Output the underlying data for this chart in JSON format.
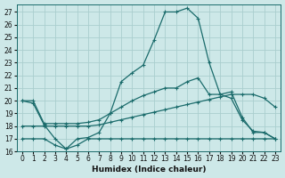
{
  "xlabel": "Humidex (Indice chaleur)",
  "xlim": [
    -0.5,
    23.5
  ],
  "ylim": [
    16,
    27.6
  ],
  "yticks": [
    16,
    17,
    18,
    19,
    20,
    21,
    22,
    23,
    24,
    25,
    26,
    27
  ],
  "xticks": [
    0,
    1,
    2,
    3,
    4,
    5,
    6,
    7,
    8,
    9,
    10,
    11,
    12,
    13,
    14,
    15,
    16,
    17,
    18,
    19,
    20,
    21,
    22,
    23
  ],
  "background_color": "#cde8e8",
  "grid_color": "#aacece",
  "line_color": "#1a6b6b",
  "line1_y": [
    20.0,
    19.8,
    18.1,
    17.0,
    16.2,
    17.0,
    17.1,
    17.5,
    19.0,
    21.5,
    22.2,
    22.8,
    24.8,
    27.0,
    27.0,
    27.3,
    26.5,
    23.0,
    20.5,
    20.2,
    18.5,
    17.6,
    17.5,
    17.0
  ],
  "line2_y": [
    20.0,
    20.0,
    18.2,
    18.2,
    18.2,
    18.2,
    18.3,
    18.5,
    19.0,
    19.5,
    20.0,
    20.4,
    20.7,
    21.0,
    21.0,
    21.5,
    21.8,
    20.5,
    20.5,
    20.7,
    18.7,
    17.5,
    17.5,
    17.0
  ],
  "line3_y": [
    18.0,
    18.0,
    18.0,
    18.0,
    18.0,
    18.0,
    18.0,
    18.1,
    18.3,
    18.5,
    18.7,
    18.9,
    19.1,
    19.3,
    19.5,
    19.7,
    19.9,
    20.1,
    20.3,
    20.5,
    20.5,
    20.5,
    20.2,
    19.5
  ],
  "line4_y": [
    17.0,
    17.0,
    17.0,
    16.5,
    16.2,
    16.5,
    17.0,
    17.0,
    17.0,
    17.0,
    17.0,
    17.0,
    17.0,
    17.0,
    17.0,
    17.0,
    17.0,
    17.0,
    17.0,
    17.0,
    17.0,
    17.0,
    17.0,
    17.0
  ]
}
